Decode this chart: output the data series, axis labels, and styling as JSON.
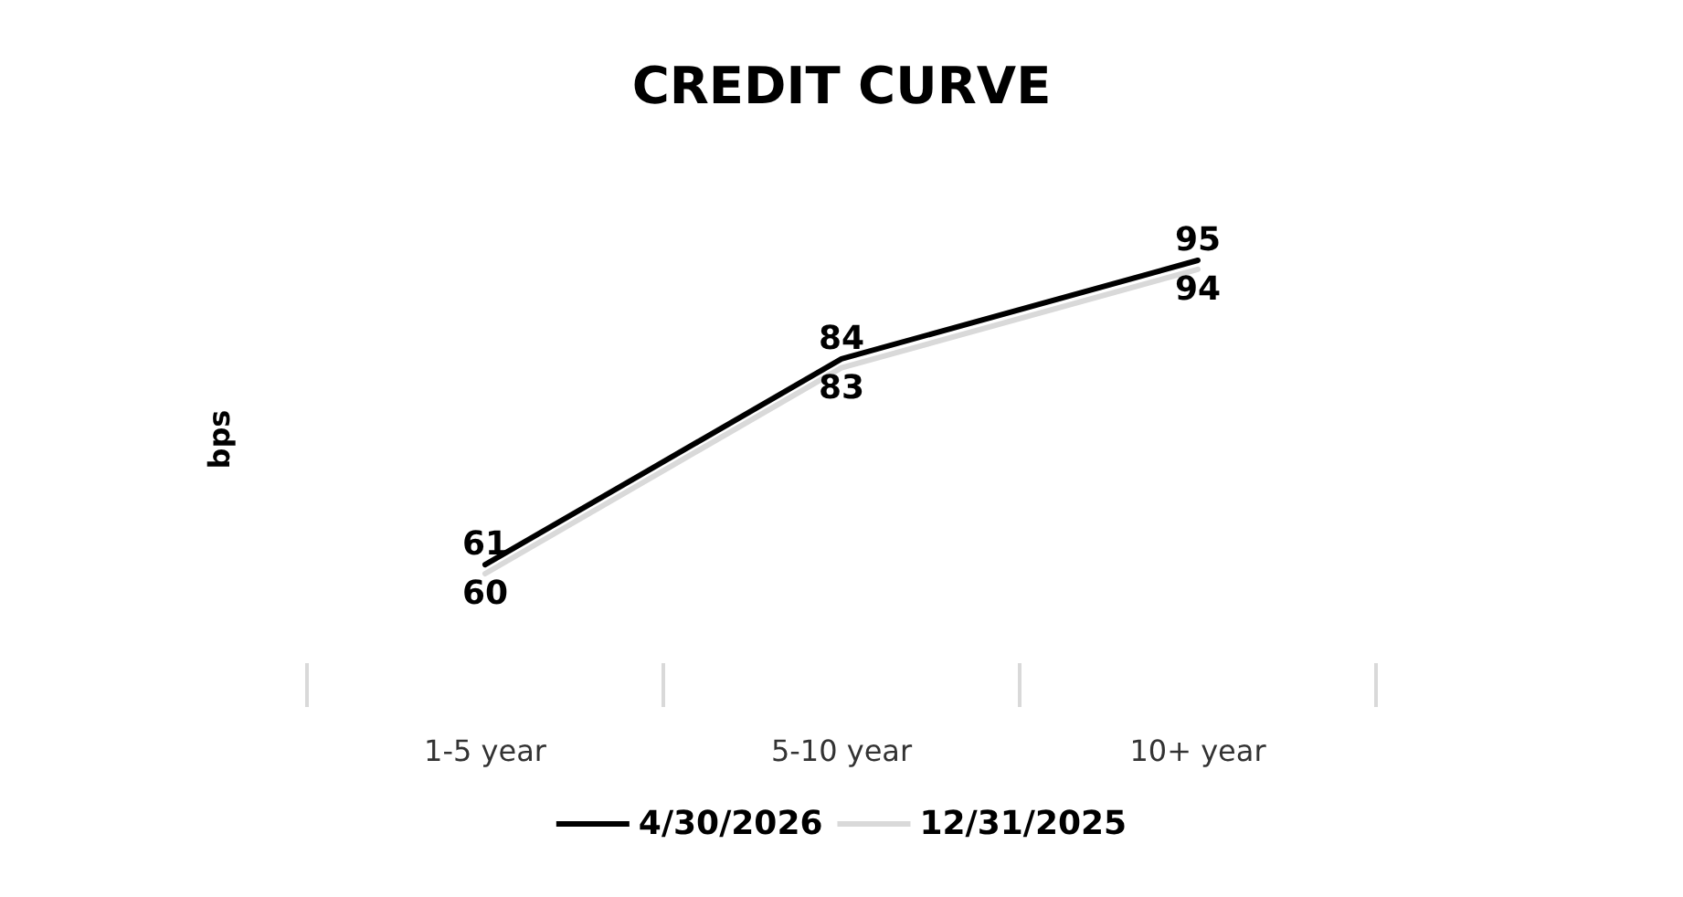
{
  "chart_data": {
    "type": "line",
    "title": "CREDIT CURVE",
    "ylabel": "bps",
    "categories": [
      "1-5 year",
      "5-10 year",
      "10+ year"
    ],
    "series": [
      {
        "name": "4/30/2026",
        "color": "#000000",
        "values": [
          61,
          84,
          95
        ]
      },
      {
        "name": "12/31/2025",
        "color": "#d9d9d9",
        "values": [
          60,
          83,
          94
        ]
      }
    ],
    "data_labels": true,
    "legend": "bottom",
    "grid": false,
    "marker": "none",
    "line_style": "solid"
  }
}
